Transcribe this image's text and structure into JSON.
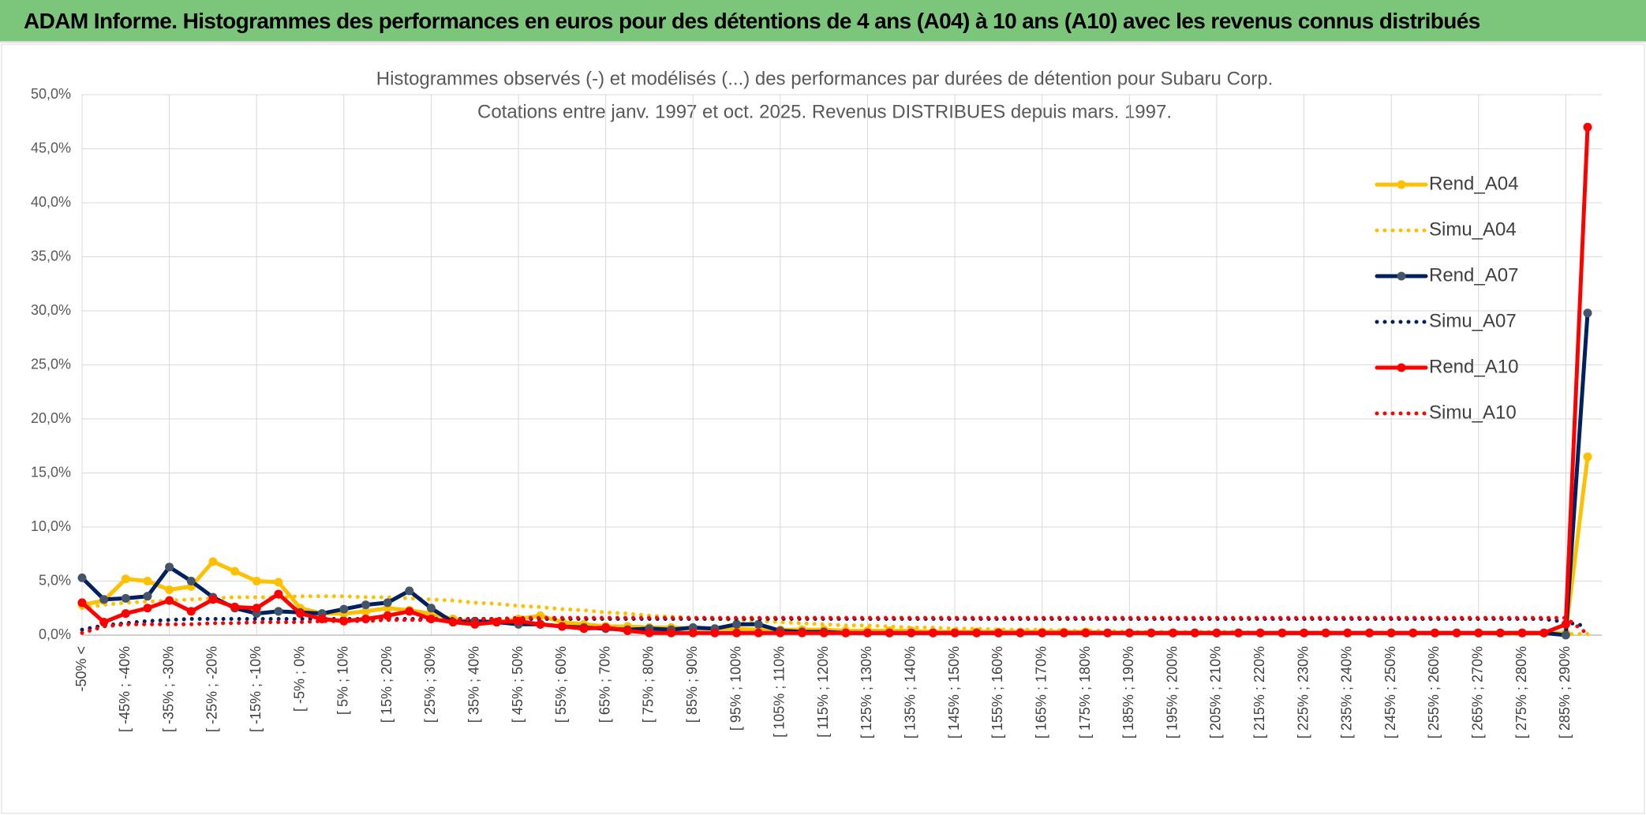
{
  "header": {
    "title": "ADAM Informe. Histogrammes des performances en euros pour des détentions de 4 ans (A04) à 10 ans (A10) avec les revenus connus distribués"
  },
  "chart_data": {
    "type": "line",
    "title": "Histogrammes observés (-) et modélisés (...) des performances par durées de détention pour Subaru Corp.",
    "subtitle": "Cotations entre janv. 1997 et oct. 2025. Revenus DISTRIBUES depuis mars. 1997.",
    "categories": [
      "-50% <",
      null,
      "[ -45% ; -40%",
      null,
      "[ -35% ; -30%",
      null,
      "[ -25% ; -20%",
      null,
      "[ -15% ; -10%",
      null,
      "[ -5% ; 0%",
      null,
      "[ 5% ; 10%",
      null,
      "[ 15% ; 20%",
      null,
      "[ 25% ; 30%",
      null,
      "[ 35% ; 40%",
      null,
      "[ 45% ; 50%",
      null,
      "[ 55% ; 60%",
      null,
      "[ 65% ; 70%",
      null,
      "[ 75% ; 80%",
      null,
      "[ 85% ; 90%",
      null,
      "[ 95% ; 100%",
      null,
      "[ 105% ; 110%",
      null,
      "[ 115% ; 120%",
      null,
      "[ 125% ; 130%",
      null,
      "[ 135% ; 140%",
      null,
      "[ 145% ; 150%",
      null,
      "[ 155% ; 160%",
      null,
      "[ 165% ; 170%",
      null,
      "[ 175% ; 180%",
      null,
      "[ 185% ; 190%",
      null,
      "[ 195% ; 200%",
      null,
      "[ 205% ; 210%",
      null,
      "[ 215% ; 220%",
      null,
      "[ 225% ; 230%",
      null,
      "[ 235% ; 240%",
      null,
      "[ 245% ; 250%",
      null,
      "[ 255% ; 260%",
      null,
      "[ 265% ; 270%",
      null,
      "[ 275% ; 280%",
      null,
      "[ 285% ; 290%",
      null
    ],
    "series": [
      {
        "name": "Rend_A04",
        "color": "#FFC000",
        "style": "solid",
        "markers": true,
        "values": [
          2.8,
          3.2,
          5.2,
          5.0,
          4.2,
          4.5,
          6.8,
          5.9,
          5.0,
          4.9,
          2.5,
          2.0,
          2.0,
          2.2,
          2.5,
          2.3,
          2.0,
          1.5,
          1.2,
          1.2,
          1.5,
          1.8,
          1.2,
          1.0,
          0.8,
          0.8,
          0.7,
          0.7,
          0.6,
          0.6,
          0.6,
          0.5,
          0.5,
          0.5,
          0.5,
          0.4,
          0.4,
          0.4,
          0.4,
          0.3,
          0.3,
          0.3,
          0.3,
          0.3,
          0.3,
          0.3,
          0.3,
          0.2,
          0.2,
          0.2,
          0.2,
          0.2,
          0.2,
          0.2,
          0.2,
          0.2,
          0.2,
          0.2,
          0.2,
          0.2,
          0.2,
          0.2,
          0.2,
          0.2,
          0.2,
          0.2,
          0.2,
          0.2,
          0.2,
          16.5
        ]
      },
      {
        "name": "Simu_A04",
        "color": "#FFC000",
        "style": "dotted",
        "markers": false,
        "values": [
          2.5,
          2.8,
          3.0,
          3.1,
          3.2,
          3.3,
          3.4,
          3.5,
          3.5,
          3.5,
          3.6,
          3.6,
          3.6,
          3.5,
          3.5,
          3.4,
          3.3,
          3.2,
          3.0,
          2.9,
          2.7,
          2.6,
          2.4,
          2.3,
          2.1,
          2.0,
          1.8,
          1.7,
          1.6,
          1.5,
          1.4,
          1.3,
          1.2,
          1.1,
          1.0,
          0.9,
          0.9,
          0.8,
          0.7,
          0.7,
          0.6,
          0.6,
          0.5,
          0.5,
          0.5,
          0.4,
          0.4,
          0.4,
          0.3,
          0.3,
          0.3,
          0.3,
          0.3,
          0.3,
          0.2,
          0.2,
          0.2,
          0.2,
          0.2,
          0.2,
          0.2,
          0.2,
          0.2,
          0.2,
          0.2,
          0.1,
          0.1,
          0.1,
          0.1,
          0.1
        ]
      },
      {
        "name": "Rend_A07",
        "color": "#002060",
        "style": "solid",
        "markers": true,
        "values": [
          5.3,
          3.3,
          3.4,
          3.6,
          6.3,
          5.0,
          3.5,
          2.5,
          2.0,
          2.2,
          2.1,
          2.0,
          2.4,
          2.8,
          3.0,
          4.1,
          2.5,
          1.2,
          1.3,
          1.2,
          1.0,
          1.0,
          0.8,
          0.7,
          0.6,
          0.5,
          0.6,
          0.5,
          0.7,
          0.6,
          1.0,
          1.0,
          0.4,
          0.3,
          0.3,
          0.2,
          0.2,
          0.2,
          0.2,
          0.2,
          0.2,
          0.2,
          0.2,
          0.2,
          0.2,
          0.2,
          0.2,
          0.2,
          0.2,
          0.2,
          0.2,
          0.2,
          0.2,
          0.2,
          0.2,
          0.2,
          0.2,
          0.2,
          0.2,
          0.2,
          0.2,
          0.2,
          0.2,
          0.2,
          0.2,
          0.2,
          0.2,
          0.2,
          0.0,
          29.8
        ]
      },
      {
        "name": "Simu_A07",
        "color": "#002060",
        "style": "dotted",
        "markers": false,
        "values": [
          0.5,
          0.9,
          1.1,
          1.3,
          1.4,
          1.5,
          1.5,
          1.5,
          1.5,
          1.5,
          1.5,
          1.5,
          1.5,
          1.5,
          1.5,
          1.5,
          1.5,
          1.5,
          1.5,
          1.5,
          1.5,
          1.5,
          1.5,
          1.5,
          1.5,
          1.5,
          1.5,
          1.5,
          1.5,
          1.5,
          1.5,
          1.5,
          1.5,
          1.5,
          1.5,
          1.5,
          1.5,
          1.5,
          1.5,
          1.5,
          1.5,
          1.5,
          1.5,
          1.5,
          1.5,
          1.5,
          1.5,
          1.5,
          1.5,
          1.5,
          1.5,
          1.5,
          1.5,
          1.5,
          1.5,
          1.5,
          1.5,
          1.5,
          1.5,
          1.5,
          1.5,
          1.5,
          1.5,
          1.5,
          1.5,
          1.5,
          1.5,
          1.5,
          1.2,
          0.8
        ]
      },
      {
        "name": "Rend_A10",
        "color": "#FF0000",
        "style": "solid",
        "markers": true,
        "values": [
          3.0,
          1.2,
          2.0,
          2.5,
          3.2,
          2.2,
          3.3,
          2.6,
          2.5,
          3.8,
          2.0,
          1.5,
          1.3,
          1.5,
          1.8,
          2.2,
          1.5,
          1.2,
          1.0,
          1.2,
          1.3,
          1.0,
          0.8,
          0.6,
          0.7,
          0.4,
          0.2,
          0.2,
          0.2,
          0.2,
          0.2,
          0.2,
          0.2,
          0.2,
          0.2,
          0.2,
          0.2,
          0.2,
          0.2,
          0.2,
          0.2,
          0.2,
          0.2,
          0.2,
          0.2,
          0.2,
          0.2,
          0.2,
          0.2,
          0.2,
          0.2,
          0.2,
          0.2,
          0.2,
          0.2,
          0.2,
          0.2,
          0.2,
          0.2,
          0.2,
          0.2,
          0.2,
          0.2,
          0.2,
          0.2,
          0.2,
          0.2,
          0.2,
          1.0,
          47.0
        ]
      },
      {
        "name": "Simu_A10",
        "color": "#FF0000",
        "style": "dotted",
        "markers": false,
        "values": [
          0.2,
          0.8,
          1.0,
          1.0,
          1.0,
          1.0,
          1.1,
          1.1,
          1.2,
          1.2,
          1.2,
          1.3,
          1.3,
          1.3,
          1.4,
          1.4,
          1.4,
          1.4,
          1.5,
          1.5,
          1.6,
          1.6,
          1.6,
          1.6,
          1.6,
          1.6,
          1.6,
          1.6,
          1.6,
          1.6,
          1.6,
          1.6,
          1.6,
          1.6,
          1.6,
          1.6,
          1.6,
          1.6,
          1.6,
          1.6,
          1.6,
          1.6,
          1.6,
          1.6,
          1.6,
          1.6,
          1.6,
          1.6,
          1.6,
          1.6,
          1.6,
          1.6,
          1.6,
          1.6,
          1.6,
          1.6,
          1.6,
          1.6,
          1.6,
          1.6,
          1.6,
          1.6,
          1.6,
          1.6,
          1.6,
          1.6,
          1.6,
          1.6,
          1.6,
          0.1
        ]
      }
    ],
    "ylim": [
      0,
      50
    ],
    "yticks": [
      {
        "value": 0,
        "label": "0,0%"
      },
      {
        "value": 5,
        "label": "5,0%"
      },
      {
        "value": 10,
        "label": "10,0%"
      },
      {
        "value": 15,
        "label": "15,0%"
      },
      {
        "value": 20,
        "label": "20,0%"
      },
      {
        "value": 25,
        "label": "25,0%"
      },
      {
        "value": 30,
        "label": "30,0%"
      },
      {
        "value": 35,
        "label": "35,0%"
      },
      {
        "value": 40,
        "label": "40,0%"
      },
      {
        "value": 45,
        "label": "45,0%"
      },
      {
        "value": 50,
        "label": "50,0%"
      }
    ],
    "grid": true,
    "legend": "right"
  }
}
